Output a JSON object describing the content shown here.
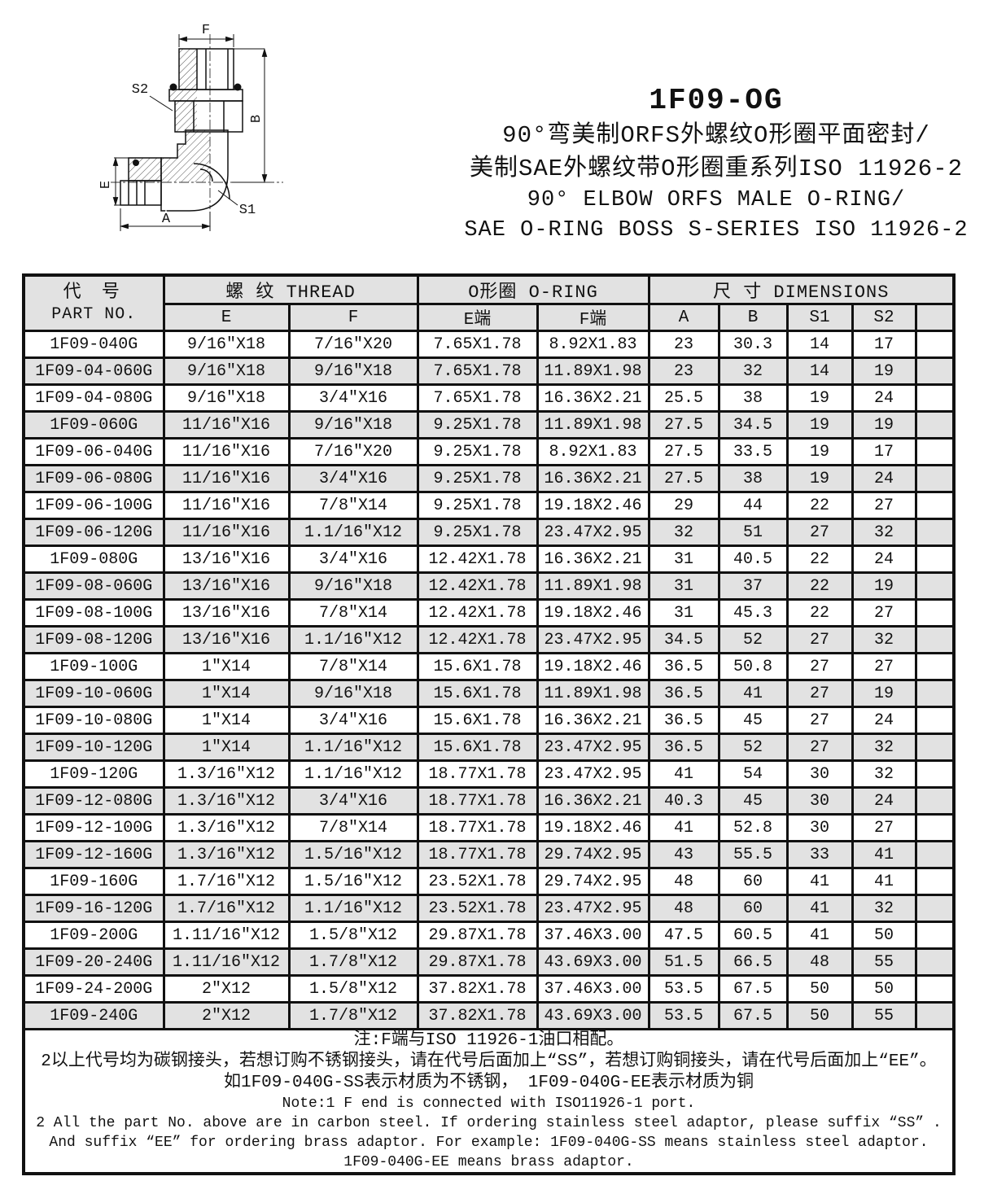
{
  "title": "1F09-OG",
  "subtitle": {
    "zh1": "90°弯美制ORFS外螺纹O形圈平面密封/",
    "zh2": "美制SAE外螺纹带O形圈重系列ISO 11926-2",
    "en1": "90° ELBOW ORFS MALE O-RING/",
    "en2": "SAE O-RING BOSS S-SERIES ISO 11926-2"
  },
  "drawing": {
    "labels": {
      "f": "F",
      "s2": "S2",
      "b": "B",
      "e": "E",
      "a": "A",
      "s1": "S1"
    }
  },
  "table": {
    "header_groups": {
      "part_no_zh": "代  号",
      "part_no_en": "PART  NO.",
      "thread": "螺  纹  THREAD",
      "oring": "O形圈 O-RING",
      "dimensions": "尺  寸   DIMENSIONS"
    },
    "sub_headers": [
      "E",
      "F",
      "E端",
      "F端",
      "A",
      "B",
      "S1",
      "S2",
      ""
    ],
    "rows": [
      [
        "1F09-040G",
        "9/16″X18",
        "7/16″X20",
        "7.65X1.78",
        "8.92X1.83",
        "23",
        "30.3",
        "14",
        "17"
      ],
      [
        "1F09-04-060G",
        "9/16″X18",
        "9/16″X18",
        "7.65X1.78",
        "11.89X1.98",
        "23",
        "32",
        "14",
        "19"
      ],
      [
        "1F09-04-080G",
        "9/16″X18",
        "3/4″X16",
        "7.65X1.78",
        "16.36X2.21",
        "25.5",
        "38",
        "19",
        "24"
      ],
      [
        "1F09-060G",
        "11/16″X16",
        "9/16″X18",
        "9.25X1.78",
        "11.89X1.98",
        "27.5",
        "34.5",
        "19",
        "19"
      ],
      [
        "1F09-06-040G",
        "11/16″X16",
        "7/16″X20",
        "9.25X1.78",
        "8.92X1.83",
        "27.5",
        "33.5",
        "19",
        "17"
      ],
      [
        "1F09-06-080G",
        "11/16″X16",
        "3/4″X16",
        "9.25X1.78",
        "16.36X2.21",
        "27.5",
        "38",
        "19",
        "24"
      ],
      [
        "1F09-06-100G",
        "11/16″X16",
        "7/8″X14",
        "9.25X1.78",
        "19.18X2.46",
        "29",
        "44",
        "22",
        "27"
      ],
      [
        "1F09-06-120G",
        "11/16″X16",
        "1.1/16″X12",
        "9.25X1.78",
        "23.47X2.95",
        "32",
        "51",
        "27",
        "32"
      ],
      [
        "1F09-080G",
        "13/16″X16",
        "3/4″X16",
        "12.42X1.78",
        "16.36X2.21",
        "31",
        "40.5",
        "22",
        "24"
      ],
      [
        "1F09-08-060G",
        "13/16″X16",
        "9/16″X18",
        "12.42X1.78",
        "11.89X1.98",
        "31",
        "37",
        "22",
        "19"
      ],
      [
        "1F09-08-100G",
        "13/16″X16",
        "7/8″X14",
        "12.42X1.78",
        "19.18X2.46",
        "31",
        "45.3",
        "22",
        "27"
      ],
      [
        "1F09-08-120G",
        "13/16″X16",
        "1.1/16″X12",
        "12.42X1.78",
        "23.47X2.95",
        "34.5",
        "52",
        "27",
        "32"
      ],
      [
        "1F09-100G",
        "1″X14",
        "7/8″X14",
        "15.6X1.78",
        "19.18X2.46",
        "36.5",
        "50.8",
        "27",
        "27"
      ],
      [
        "1F09-10-060G",
        "1″X14",
        "9/16″X18",
        "15.6X1.78",
        "11.89X1.98",
        "36.5",
        "41",
        "27",
        "19"
      ],
      [
        "1F09-10-080G",
        "1″X14",
        "3/4″X16",
        "15.6X1.78",
        "16.36X2.21",
        "36.5",
        "45",
        "27",
        "24"
      ],
      [
        "1F09-10-120G",
        "1″X14",
        "1.1/16″X12",
        "15.6X1.78",
        "23.47X2.95",
        "36.5",
        "52",
        "27",
        "32"
      ],
      [
        "1F09-120G",
        "1.3/16″X12",
        "1.1/16″X12",
        "18.77X1.78",
        "23.47X2.95",
        "41",
        "54",
        "30",
        "32"
      ],
      [
        "1F09-12-080G",
        "1.3/16″X12",
        "3/4″X16",
        "18.77X1.78",
        "16.36X2.21",
        "40.3",
        "45",
        "30",
        "24"
      ],
      [
        "1F09-12-100G",
        "1.3/16″X12",
        "7/8″X14",
        "18.77X1.78",
        "19.18X2.46",
        "41",
        "52.8",
        "30",
        "27"
      ],
      [
        "1F09-12-160G",
        "1.3/16″X12",
        "1.5/16″X12",
        "18.77X1.78",
        "29.74X2.95",
        "43",
        "55.5",
        "33",
        "41"
      ],
      [
        "1F09-160G",
        "1.7/16″X12",
        "1.5/16″X12",
        "23.52X1.78",
        "29.74X2.95",
        "48",
        "60",
        "41",
        "41"
      ],
      [
        "1F09-16-120G",
        "1.7/16″X12",
        "1.1/16″X12",
        "23.52X1.78",
        "23.47X2.95",
        "48",
        "60",
        "41",
        "32"
      ],
      [
        "1F09-200G",
        "1.11/16″X12",
        "1.5/8″X12",
        "29.87X1.78",
        "37.46X3.00",
        "47.5",
        "60.5",
        "41",
        "50"
      ],
      [
        "1F09-20-240G",
        "1.11/16″X12",
        "1.7/8″X12",
        "29.87X1.78",
        "43.69X3.00",
        "51.5",
        "66.5",
        "48",
        "55"
      ],
      [
        "1F09-24-200G",
        "2″X12",
        "1.5/8″X12",
        "37.82X1.78",
        "37.46X3.00",
        "53.5",
        "67.5",
        "50",
        "50"
      ],
      [
        "1F09-240G",
        "2″X12",
        "1.7/8″X12",
        "37.82X1.78",
        "43.69X3.00",
        "53.5",
        "67.5",
        "50",
        "55"
      ]
    ]
  },
  "notes": {
    "lines_zh": [
      "注:F端与ISO 11926-1油口相配。",
      "2以上代号均为碳钢接头，若想订购不锈钢接头，请在代号后面加上“SS”，若想订购铜接头，请在代号后面加上“EE”。",
      "如1F09-040G-SS表示材质为不锈钢， 1F09-040G-EE表示材质为铜"
    ],
    "lines_en": [
      "Note:1  F end is connected with ISO11926-1 port.",
      "2 All the part No. above are in carbon steel. If ordering stainless steel adaptor, please suffix “SS” .",
      "And suffix “EE” for ordering brass adaptor. For example: 1F09-040G-SS  means stainless steel adaptor.",
      "1F09-040G-EE means brass adaptor."
    ]
  },
  "colors": {
    "stripe": "#e2e2e2",
    "border": "#111111",
    "ink": "#111111"
  }
}
